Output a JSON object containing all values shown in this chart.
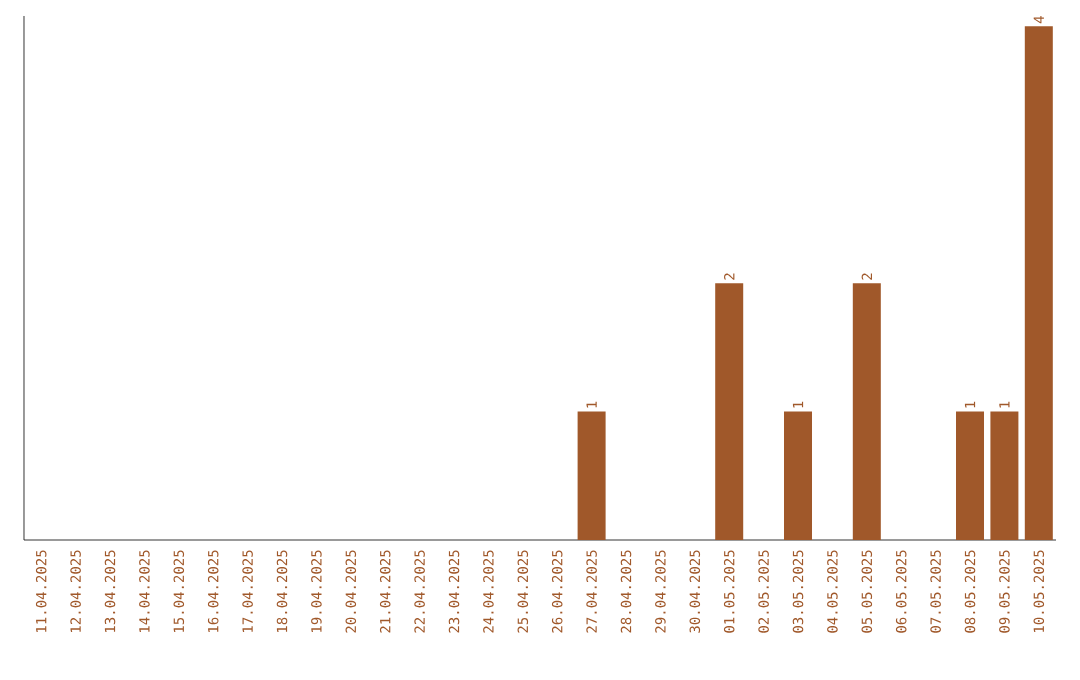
{
  "chart_data": {
    "type": "bar",
    "categories": [
      "11.04.2025",
      "12.04.2025",
      "13.04.2025",
      "14.04.2025",
      "15.04.2025",
      "16.04.2025",
      "17.04.2025",
      "18.04.2025",
      "19.04.2025",
      "20.04.2025",
      "21.04.2025",
      "22.04.2025",
      "23.04.2025",
      "24.04.2025",
      "25.04.2025",
      "26.04.2025",
      "27.04.2025",
      "28.04.2025",
      "29.04.2025",
      "30.04.2025",
      "01.05.2025",
      "02.05.2025",
      "03.05.2025",
      "04.05.2025",
      "05.05.2025",
      "06.05.2025",
      "07.05.2025",
      "08.05.2025",
      "09.05.2025",
      "10.05.2025"
    ],
    "values": [
      null,
      null,
      null,
      null,
      null,
      null,
      null,
      null,
      null,
      null,
      null,
      null,
      null,
      null,
      null,
      null,
      1,
      null,
      null,
      null,
      2,
      null,
      1,
      null,
      2,
      null,
      null,
      1,
      1,
      4
    ],
    "data_labels": true,
    "color": "#a0582a",
    "tick_labels": "x"
  }
}
